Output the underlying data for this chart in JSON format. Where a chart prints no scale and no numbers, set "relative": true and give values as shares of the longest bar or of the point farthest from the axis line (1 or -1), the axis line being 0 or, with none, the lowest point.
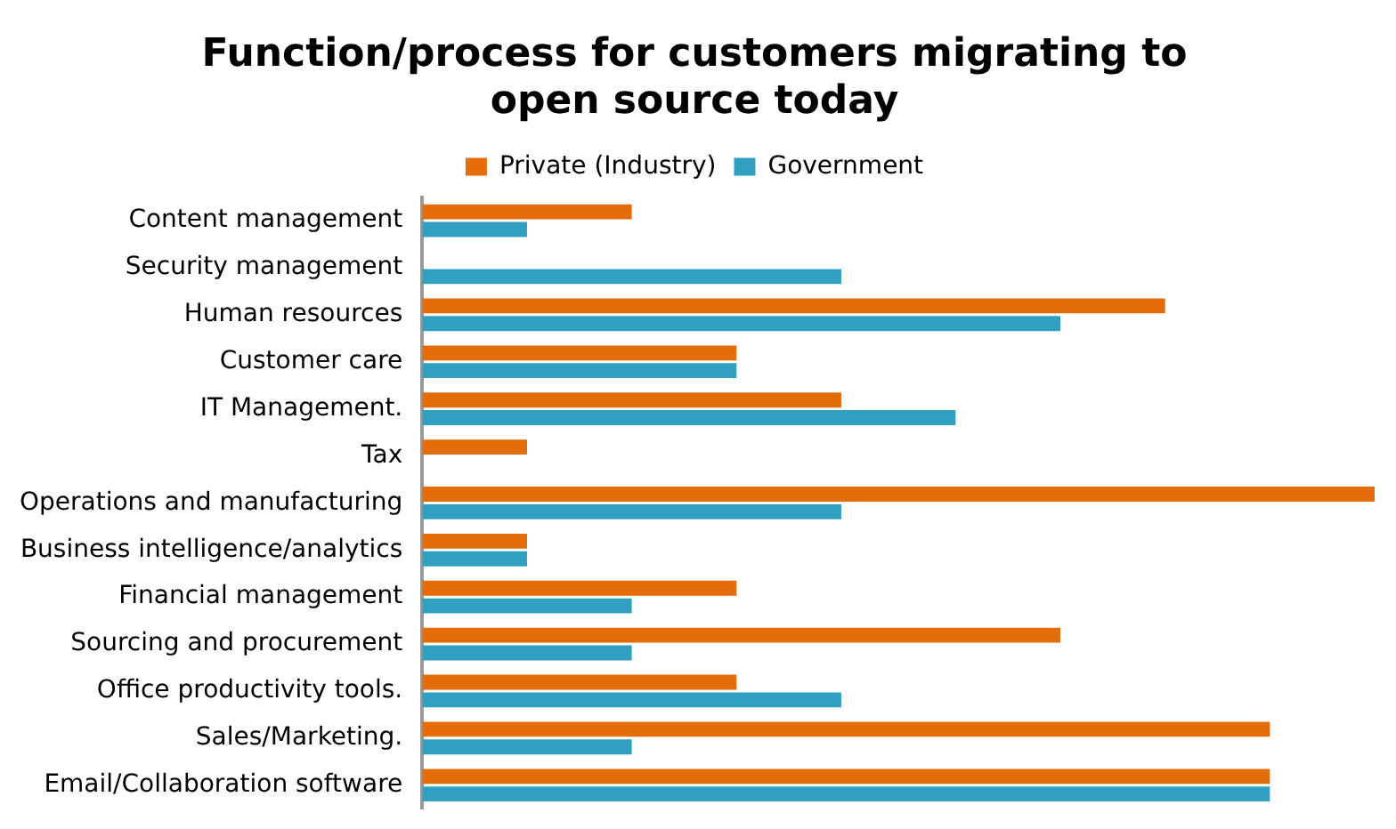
{
  "chart_data": {
    "type": "bar",
    "orientation": "horizontal",
    "relative": true,
    "title": "Function/process for customers migrating to open source today",
    "categories": [
      "Content management",
      "Security management",
      "Human resources",
      "Customer care",
      "IT Management.",
      "Tax",
      "Operations and manufacturing",
      "Business intelligence/analytics",
      "Financial management",
      "Sourcing and procurement",
      "Office productivity tools.",
      "Sales/Marketing.",
      "Email/Collaboration software"
    ],
    "series": [
      {
        "name": "Private (Industry)",
        "color": "#e46c0a",
        "values": [
          0.22,
          0,
          0.78,
          0.33,
          0.44,
          0.11,
          1,
          0.11,
          0.33,
          0.67,
          0.33,
          0.89,
          0.89
        ]
      },
      {
        "name": "Government",
        "color": "#31a0c0",
        "values": [
          0.11,
          0.44,
          0.67,
          0.33,
          0.56,
          0,
          0.44,
          0.11,
          0.22,
          0.22,
          0.44,
          0.22,
          0.89
        ]
      }
    ],
    "legend": "top"
  }
}
